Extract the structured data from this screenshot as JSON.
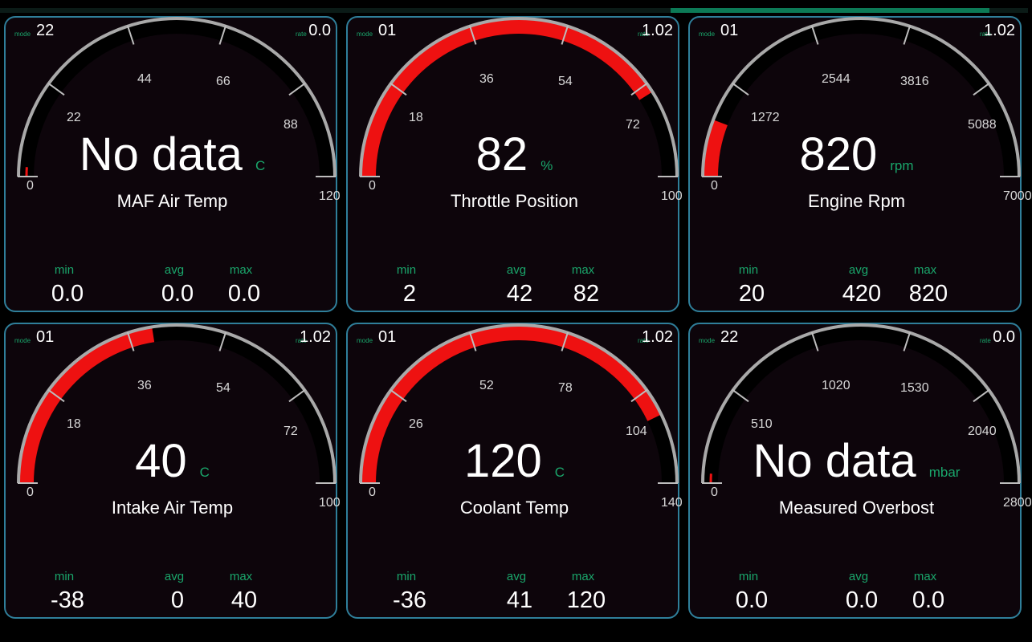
{
  "colors": {
    "accent": "#1aa66b",
    "border": "#2f7f9a",
    "needle_fill": "#ee1111",
    "panel_bg": "#0d050b"
  },
  "labels": {
    "mode": "mode",
    "rate": "rate",
    "min": "min",
    "avg": "avg",
    "max": "max"
  },
  "top_progress": {
    "fraction": 0.31
  },
  "gauges": [
    {
      "name": "MAF Air Temp",
      "value": "No data",
      "unit": "C",
      "mode": "22",
      "rate": "0.0",
      "ticks": [
        "0",
        "22",
        "44",
        "66",
        "88",
        "120"
      ],
      "fill_fraction": 0.02,
      "min": "0.0",
      "avg": "0.0",
      "max": "0.0"
    },
    {
      "name": "Throttle Position",
      "value": "82",
      "unit": "%",
      "mode": "01",
      "rate": "1.02",
      "ticks": [
        "0",
        "18",
        "36",
        "54",
        "72",
        "100"
      ],
      "fill_fraction": 0.82,
      "min": "2",
      "avg": "42",
      "max": "82"
    },
    {
      "name": "Engine Rpm",
      "value": "820",
      "unit": "rpm",
      "mode": "01",
      "rate": "1.02",
      "ticks": [
        "0",
        "1272",
        "2544",
        "3816",
        "5088",
        "7000"
      ],
      "fill_fraction": 0.117,
      "min": "20",
      "avg": "420",
      "max": "820"
    },
    {
      "name": "Intake Air Temp",
      "value": "40",
      "unit": "C",
      "mode": "01",
      "rate": "1.02",
      "ticks": [
        "0",
        "18",
        "36",
        "54",
        "72",
        "100"
      ],
      "fill_fraction": 0.45,
      "min": "-38",
      "avg": "0",
      "max": "40"
    },
    {
      "name": "Coolant Temp",
      "value": "120",
      "unit": "C",
      "mode": "01",
      "rate": "1.02",
      "ticks": [
        "0",
        "26",
        "52",
        "78",
        "104",
        "140"
      ],
      "fill_fraction": 0.857,
      "min": "-36",
      "avg": "41",
      "max": "120"
    },
    {
      "name": "Measured Overbost",
      "value": "No data",
      "unit": "mbar",
      "mode": "22",
      "rate": "0.0",
      "ticks": [
        "0",
        "510",
        "1020",
        "1530",
        "2040",
        "2800"
      ],
      "fill_fraction": 0.02,
      "min": "0.0",
      "avg": "0.0",
      "max": "0.0"
    }
  ]
}
